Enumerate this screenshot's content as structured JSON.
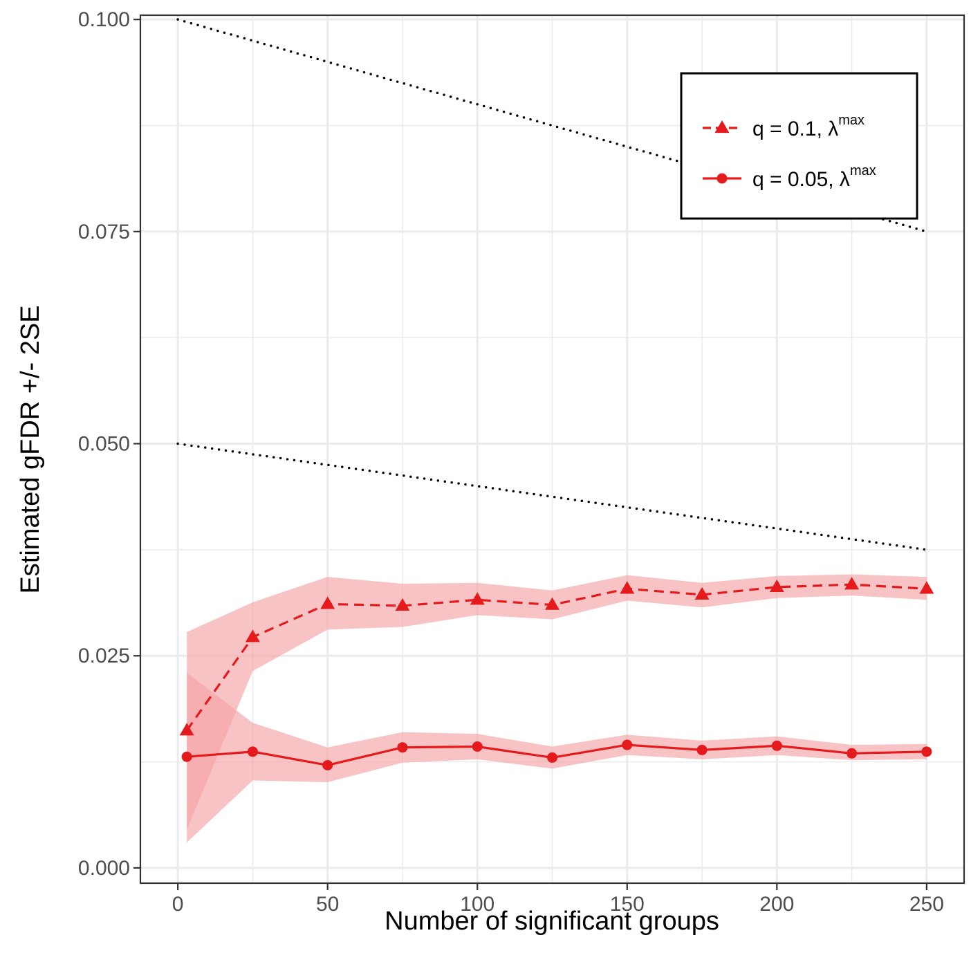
{
  "chart_data": {
    "type": "line",
    "title": "",
    "xlabel": "Number of significant groups",
    "ylabel": "Estimated gFDR +/- 2SE",
    "xlim": [
      -12.5,
      262.5
    ],
    "ylim": [
      -0.0018,
      0.1005
    ],
    "xticks": [
      0,
      50,
      100,
      150,
      200,
      250
    ],
    "xtick_labels": [
      "0",
      "50",
      "100",
      "150",
      "200",
      "250"
    ],
    "yticks": [
      0,
      0.025,
      0.05,
      0.075,
      0.1
    ],
    "ytick_labels": [
      "0.000",
      "0.025",
      "0.050",
      "0.075",
      "0.100"
    ],
    "grid": true,
    "legend_position": "top-right",
    "colors": {
      "series": "#e41a1c",
      "band": "#f4a3a6",
      "reference": "#000000",
      "grid": "#ebebeb",
      "frame": "#333333"
    },
    "series": [
      {
        "name": "q = 0.1, λmax",
        "legend_main": "q = 0.1, λ",
        "legend_sup": "max",
        "marker": "triangle",
        "line_style": "dashed",
        "x": [
          3,
          25,
          50,
          75,
          100,
          125,
          150,
          175,
          200,
          225,
          250
        ],
        "y": [
          0.0162,
          0.0272,
          0.0311,
          0.0309,
          0.0316,
          0.031,
          0.0329,
          0.0322,
          0.0331,
          0.0334,
          0.0329
        ],
        "lower": [
          0.0045,
          0.0232,
          0.0281,
          0.0284,
          0.0298,
          0.0293,
          0.0315,
          0.0307,
          0.0318,
          0.0321,
          0.0316
        ],
        "upper": [
          0.0278,
          0.0313,
          0.0343,
          0.0335,
          0.0336,
          0.0327,
          0.0345,
          0.0336,
          0.0344,
          0.0346,
          0.0343
        ]
      },
      {
        "name": "q = 0.05, λmax",
        "legend_main": "q = 0.05, λ",
        "legend_sup": "max",
        "marker": "circle",
        "line_style": "solid",
        "x": [
          3,
          25,
          50,
          75,
          100,
          125,
          150,
          175,
          200,
          225,
          250
        ],
        "y": [
          0.0131,
          0.0137,
          0.0121,
          0.0142,
          0.0143,
          0.013,
          0.0145,
          0.0139,
          0.0144,
          0.0135,
          0.0137
        ],
        "lower": [
          0.003,
          0.0103,
          0.0101,
          0.0124,
          0.0128,
          0.0117,
          0.0133,
          0.0128,
          0.0133,
          0.0127,
          0.0128
        ],
        "upper": [
          0.023,
          0.0171,
          0.0142,
          0.016,
          0.0158,
          0.0143,
          0.0157,
          0.015,
          0.0155,
          0.0145,
          0.0146
        ]
      }
    ],
    "reference_lines": [
      {
        "name": "q = 0.1 bound",
        "style": "dotted",
        "x": [
          0,
          250
        ],
        "y": [
          0.1,
          0.075
        ]
      },
      {
        "name": "q = 0.05 bound",
        "style": "dotted",
        "x": [
          0,
          250
        ],
        "y": [
          0.05,
          0.0375
        ]
      }
    ]
  }
}
